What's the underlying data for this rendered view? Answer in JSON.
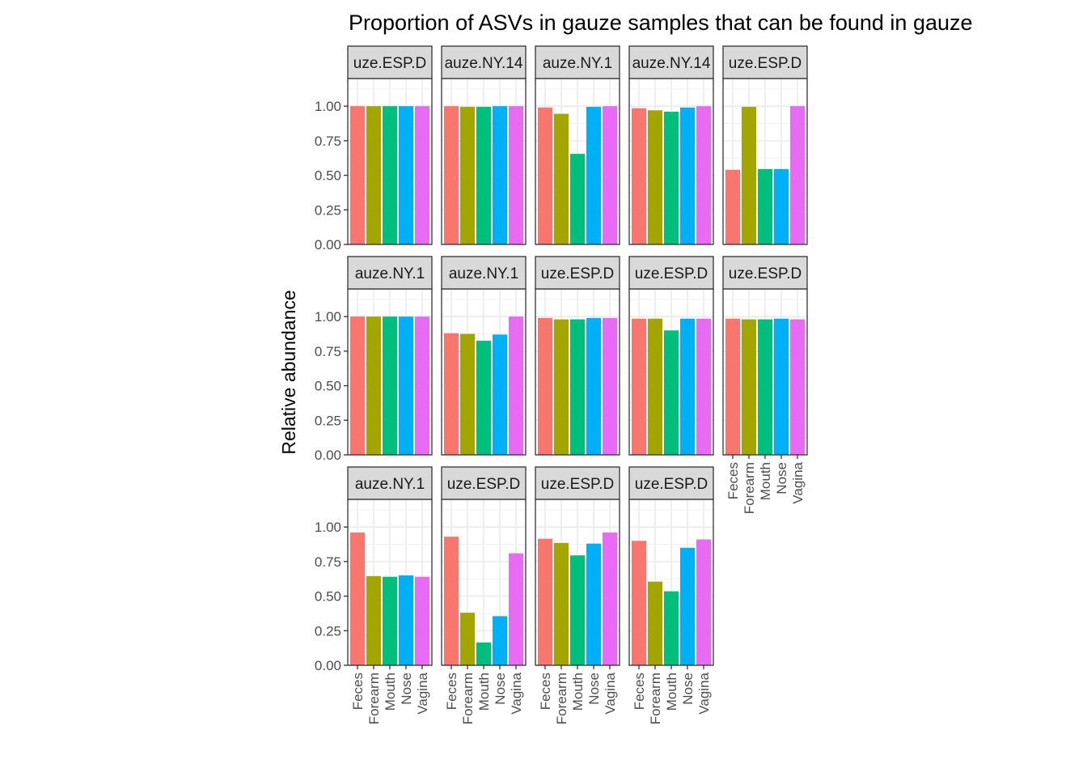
{
  "chart_data": {
    "type": "bar",
    "title": "Proportion of ASVs in gauze samples that can be found in gauze",
    "xlabel": "",
    "ylabel": "Relative abundance",
    "ylim": [
      0,
      1.2
    ],
    "yticks": [
      0.0,
      0.25,
      0.5,
      0.75,
      1.0
    ],
    "ytick_labels": [
      "0.00",
      "0.25",
      "0.50",
      "0.75",
      "1.00"
    ],
    "grid": true,
    "legend": "none",
    "categories": [
      "Feces",
      "Forearm",
      "Mouth",
      "Nose",
      "Vagina"
    ],
    "category_colors": [
      "#F8766D",
      "#A3A500",
      "#00BF7D",
      "#00B0F6",
      "#E76BF3"
    ],
    "facets": [
      {
        "label": "uze.ESP.D",
        "values": [
          1.0,
          1.0,
          1.0,
          1.0,
          1.0
        ]
      },
      {
        "label": "auze.NY.14",
        "values": [
          1.0,
          0.995,
          0.995,
          1.0,
          1.0
        ]
      },
      {
        "label": "auze.NY.1",
        "values": [
          0.99,
          0.945,
          0.655,
          0.995,
          1.0
        ]
      },
      {
        "label": "auze.NY.14",
        "values": [
          0.985,
          0.97,
          0.96,
          0.99,
          1.0
        ]
      },
      {
        "label": "uze.ESP.D",
        "values": [
          0.54,
          0.995,
          0.545,
          0.545,
          1.0
        ]
      },
      {
        "label": "auze.NY.1",
        "values": [
          1.0,
          1.0,
          1.0,
          1.0,
          1.0
        ]
      },
      {
        "label": "auze.NY.1",
        "values": [
          0.88,
          0.875,
          0.825,
          0.87,
          1.0
        ]
      },
      {
        "label": "uze.ESP.D",
        "values": [
          0.99,
          0.98,
          0.98,
          0.99,
          0.99
        ]
      },
      {
        "label": "uze.ESP.D",
        "values": [
          0.985,
          0.985,
          0.9,
          0.985,
          0.985
        ]
      },
      {
        "label": "uze.ESP.D",
        "values": [
          0.985,
          0.98,
          0.98,
          0.985,
          0.98
        ]
      },
      {
        "label": "auze.NY.1",
        "values": [
          0.96,
          0.645,
          0.64,
          0.65,
          0.64
        ]
      },
      {
        "label": "uze.ESP.D",
        "values": [
          0.93,
          0.38,
          0.165,
          0.355,
          0.81
        ]
      },
      {
        "label": "uze.ESP.D",
        "values": [
          0.915,
          0.885,
          0.795,
          0.88,
          0.96
        ]
      },
      {
        "label": "uze.ESP.D",
        "values": [
          0.9,
          0.605,
          0.535,
          0.85,
          0.91
        ]
      }
    ]
  }
}
